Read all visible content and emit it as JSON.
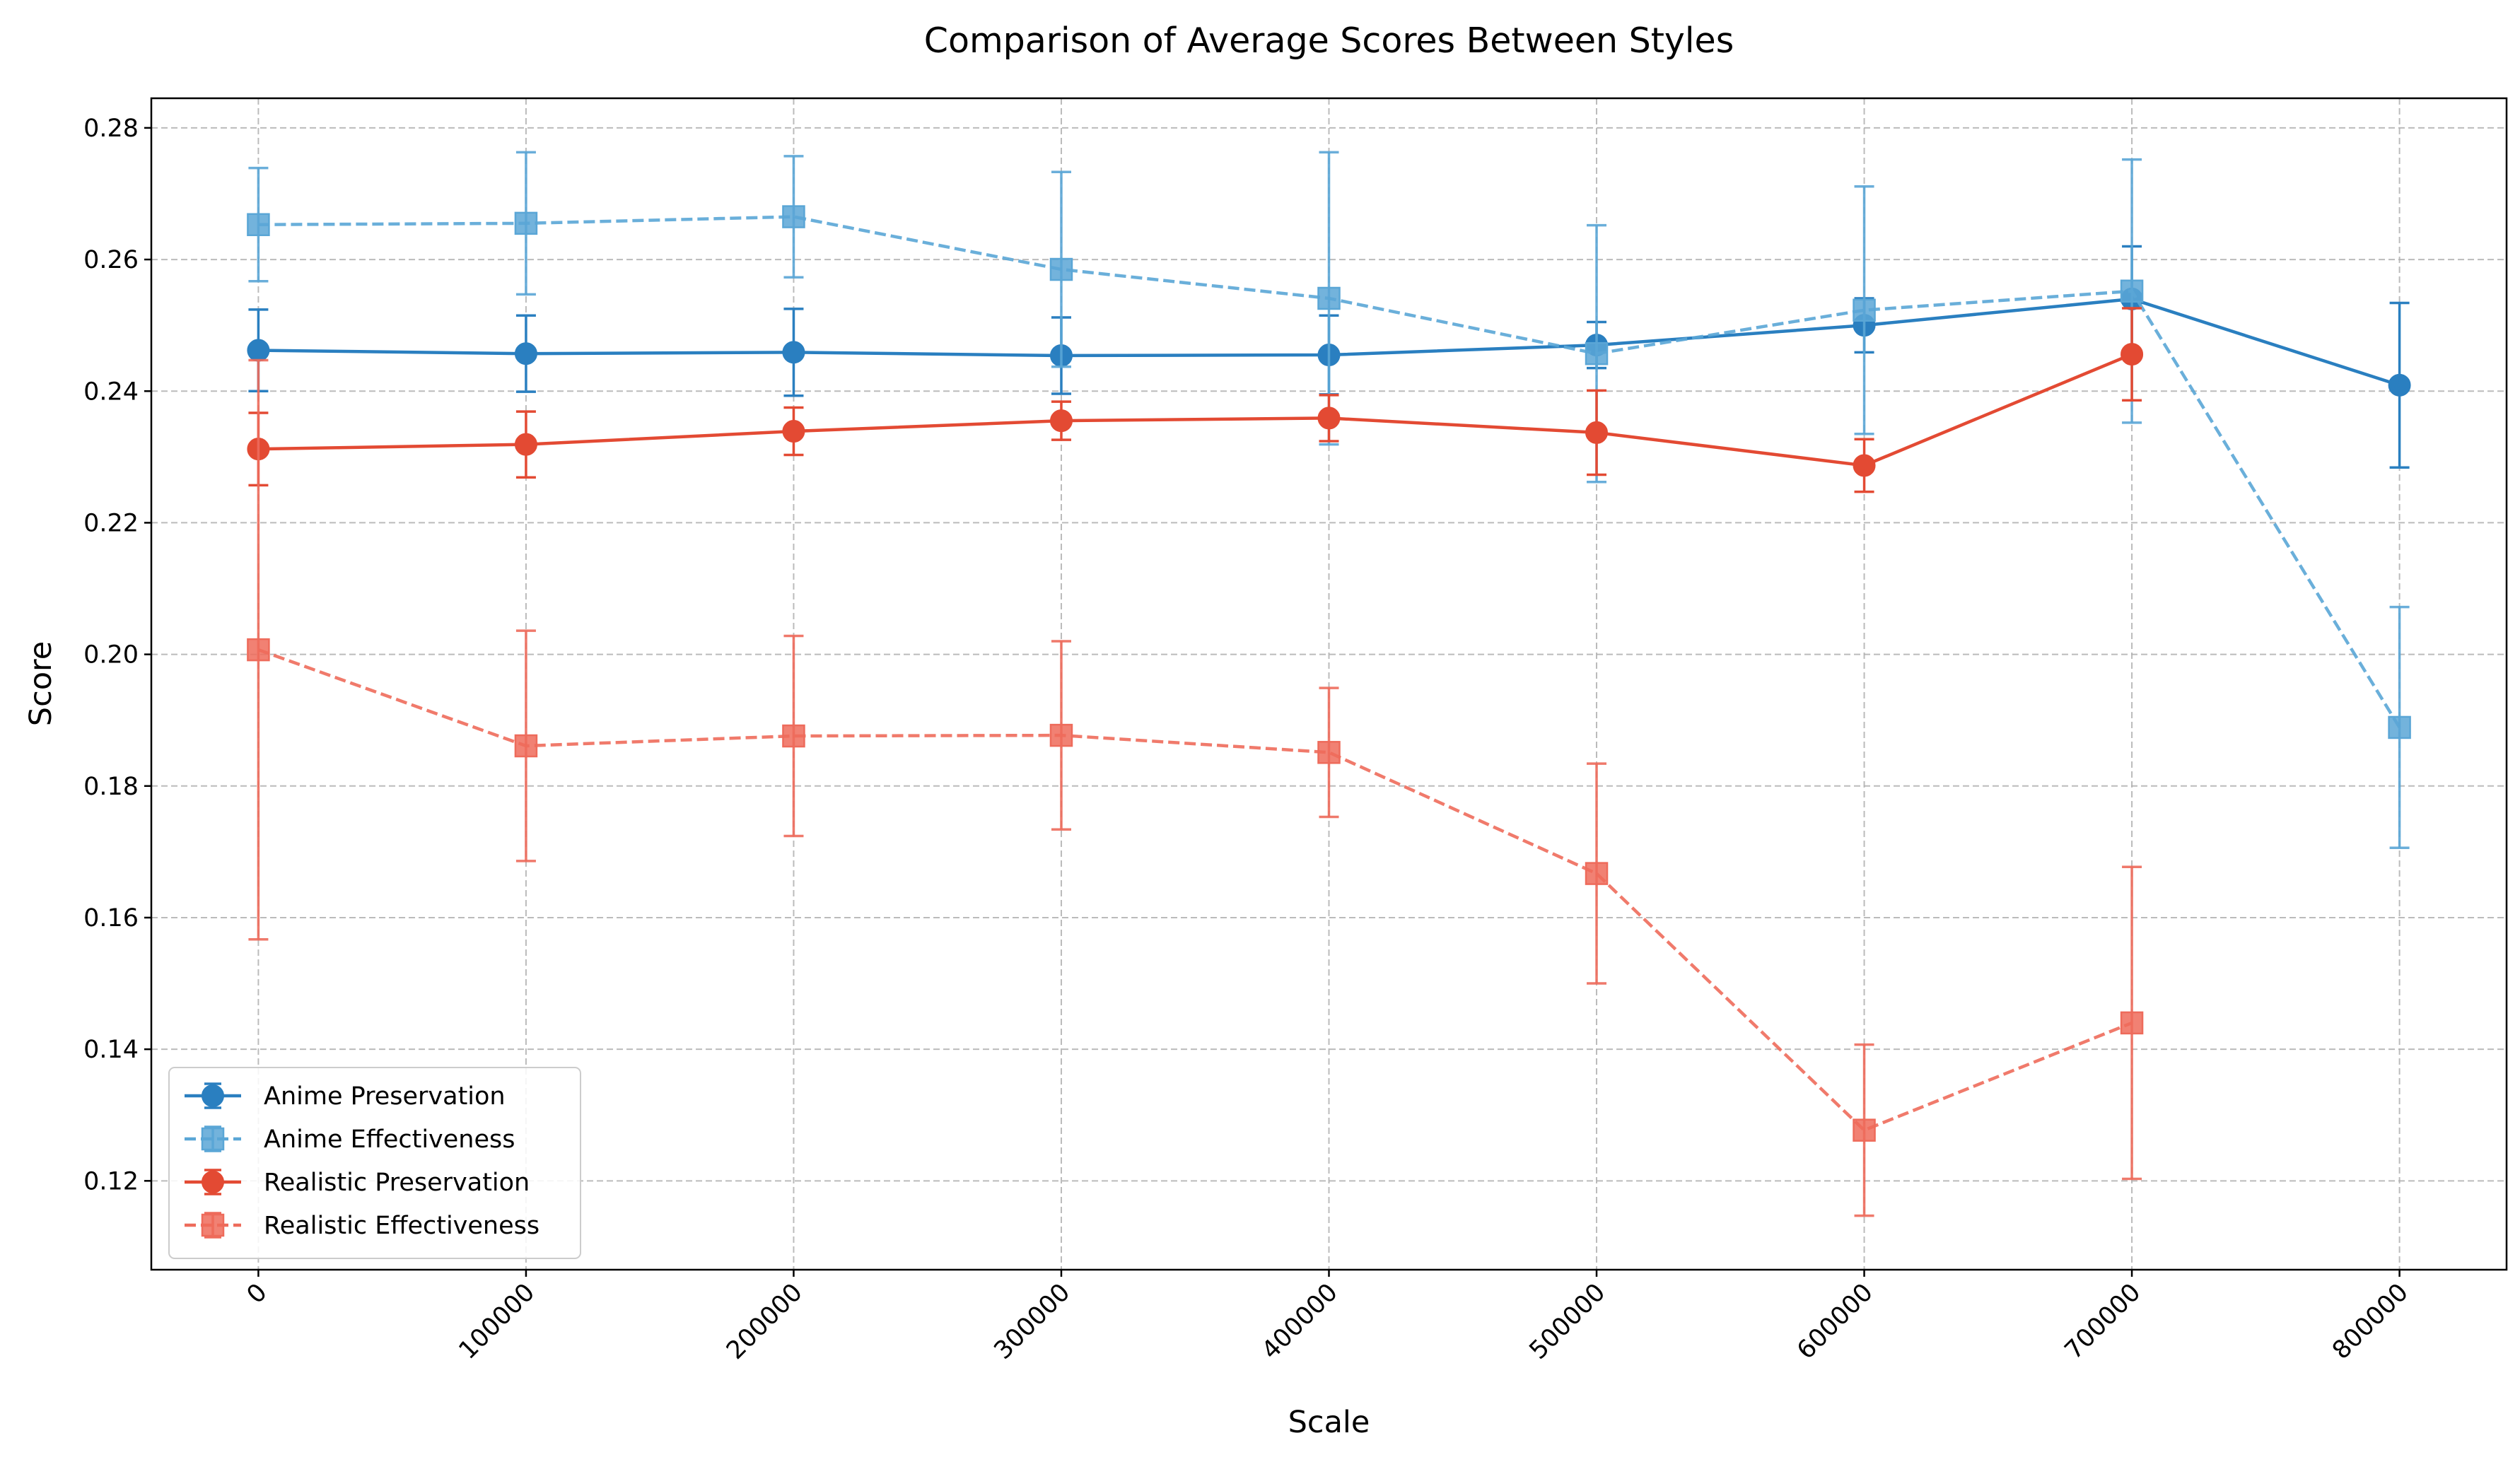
{
  "chart_data": {
    "type": "line",
    "title": "Comparison of Average Scores Between Styles",
    "xlabel": "Scale",
    "ylabel": "Score",
    "xlim": [
      -40000,
      840000
    ],
    "ylim": [
      0.1065,
      0.2845
    ],
    "x_ticks": [
      "0",
      "100000",
      "200000",
      "300000",
      "400000",
      "500000",
      "600000",
      "700000",
      "800000"
    ],
    "y_ticks": [
      "0.12",
      "0.14",
      "0.16",
      "0.18",
      "0.20",
      "0.22",
      "0.24",
      "0.26",
      "0.28"
    ],
    "x_tick_rotation": 45,
    "grid": true,
    "legend_position": "lower-left",
    "series": [
      {
        "name": "Anime Preservation",
        "color": "#2a7fc0",
        "line_style": "solid",
        "marker": "circle",
        "x": [
          0,
          100000,
          200000,
          300000,
          400000,
          500000,
          600000,
          700000,
          800000
        ],
        "y": [
          0.2462,
          0.2457,
          0.2459,
          0.2454,
          0.2455,
          0.247,
          0.25,
          0.254,
          0.2409
        ],
        "err": [
          0.0062,
          0.0058,
          0.0066,
          0.0058,
          0.006,
          0.0035,
          0.0041,
          0.008,
          0.0125
        ]
      },
      {
        "name": "Anime Effectiveness",
        "color": "#5aa6d6",
        "line_style": "dashed",
        "marker": "square",
        "x": [
          0,
          100000,
          200000,
          300000,
          400000,
          500000,
          600000,
          700000,
          800000
        ],
        "y": [
          0.2653,
          0.2655,
          0.2665,
          0.2585,
          0.2541,
          0.2457,
          0.2523,
          0.2552,
          0.1889
        ],
        "err": [
          0.0086,
          0.0108,
          0.0092,
          0.0148,
          0.0222,
          0.0195,
          0.0188,
          0.02,
          0.0183
        ]
      },
      {
        "name": "Realistic Preservation",
        "color": "#e34a33",
        "line_style": "solid",
        "marker": "circle",
        "x": [
          0,
          100000,
          200000,
          300000,
          400000,
          500000,
          600000,
          700000
        ],
        "y": [
          0.2312,
          0.2319,
          0.2339,
          0.2355,
          0.2359,
          0.2337,
          0.2287,
          0.2456
        ],
        "err": [
          0.0055,
          0.005,
          0.0036,
          0.0029,
          0.0035,
          0.0064,
          0.004,
          0.007
        ]
      },
      {
        "name": "Realistic Effectiveness",
        "color": "#ee6b5b",
        "line_style": "dashed",
        "marker": "square",
        "x": [
          0,
          100000,
          200000,
          300000,
          400000,
          500000,
          600000,
          700000
        ],
        "y": [
          0.2007,
          0.1861,
          0.1876,
          0.1877,
          0.1851,
          0.1667,
          0.1277,
          0.144
        ],
        "err": [
          0.044,
          0.0175,
          0.0152,
          0.0143,
          0.0098,
          0.0167,
          0.013,
          0.0237
        ]
      }
    ]
  }
}
